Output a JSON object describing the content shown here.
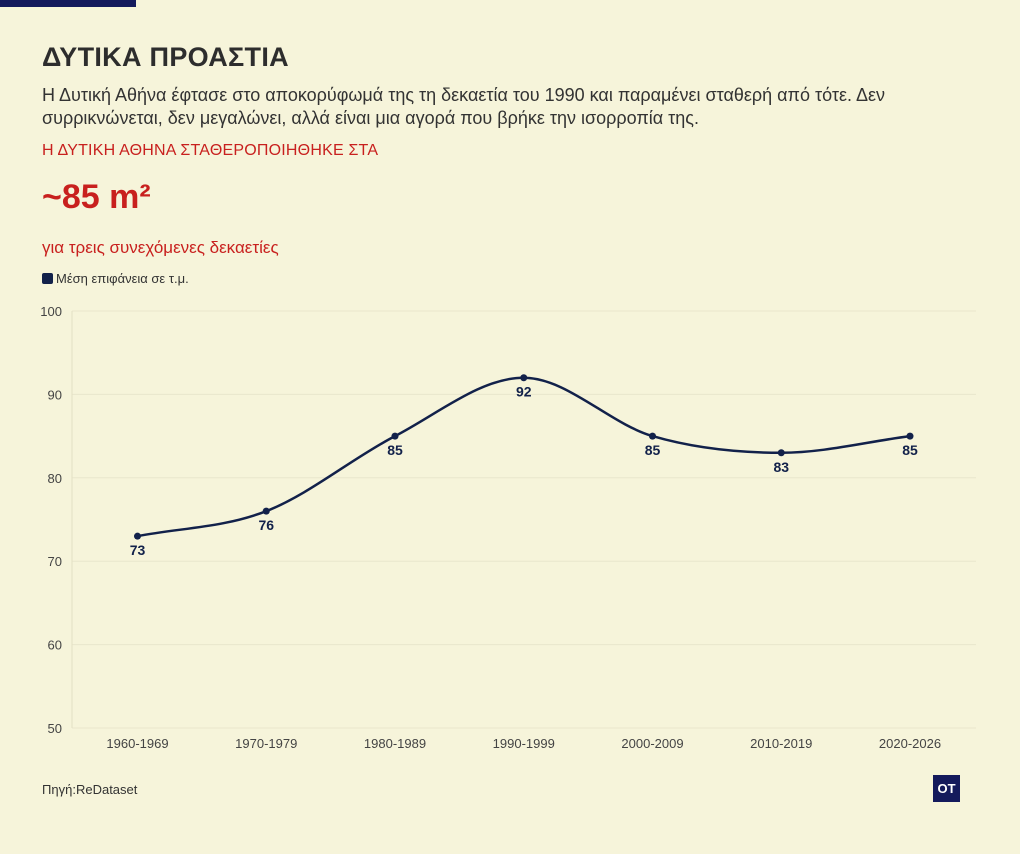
{
  "header": {
    "title": "ΔΥΤΙΚΑ ΠΡΟΑΣΤΙΑ",
    "subtitle": "Η Δυτική Αθήνα έφτασε στο αποκορύφωμά της τη δεκαετία του 1990 και παραμένει σταθερή από τότε. Δεν συρρικνώνεται, δεν μεγαλώνει, αλλά είναι μια αγορά που βρήκε την ισορροπία της.",
    "kicker": "Η ΔΥΤΙΚΗ ΑΘΗΝΑ ΣΤΑΘΕΡΟΠΟΙΗΘΗΚΕ ΣΤΑ",
    "big_number": "~85 m²",
    "big_caption": "για τρεις συνεχόμενες δεκαετίες"
  },
  "footer": {
    "source": "Πηγή:ReDataset",
    "logo": "OT"
  },
  "colors": {
    "background": "#f6f4da",
    "accent": "#c8201e",
    "line": "#12214a"
  },
  "chart_data": {
    "type": "line",
    "categories": [
      "1960-1969",
      "1970-1979",
      "1980-1989",
      "1990-1999",
      "2000-2009",
      "2010-2019",
      "2020-2026"
    ],
    "series": [
      {
        "name": "Μέση επιφάνεια σε τ.μ.",
        "values": [
          73,
          76,
          85,
          92,
          85,
          83,
          85
        ]
      }
    ],
    "ylim": [
      50,
      100
    ],
    "yticks": [
      50,
      60,
      70,
      80,
      90,
      100
    ],
    "grid": true,
    "legend_position": "top-left",
    "data_labels": true,
    "smooth": true
  }
}
